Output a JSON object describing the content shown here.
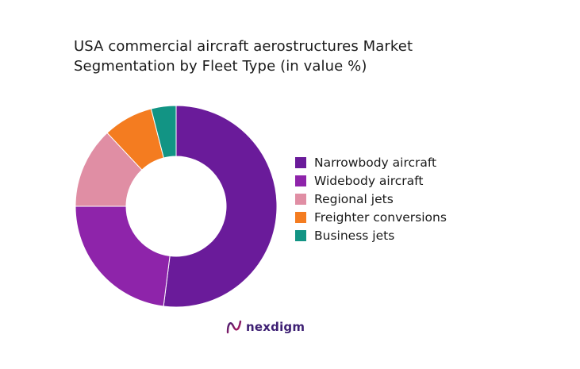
{
  "chart_data": {
    "type": "donut",
    "title_lines": [
      "USA commercial aircraft aerostructures Market",
      "Segmentation by Fleet Type (in value %)"
    ],
    "unit": "%",
    "categories": [
      "Narrowbody aircraft",
      "Widebody aircraft",
      "Regional jets",
      "Freighter conversions",
      "Business jets"
    ],
    "values": [
      52,
      23,
      13,
      8,
      4
    ],
    "colors": [
      "#6a1b9a",
      "#8e24aa",
      "#e08ea4",
      "#f47c20",
      "#129484"
    ],
    "start_angle_deg": 0,
    "direction": "clockwise",
    "legend_position": "right",
    "data_labels": false
  },
  "brand": {
    "name": "nexdigm",
    "logo_icon": "nexdigm-logo-icon"
  }
}
